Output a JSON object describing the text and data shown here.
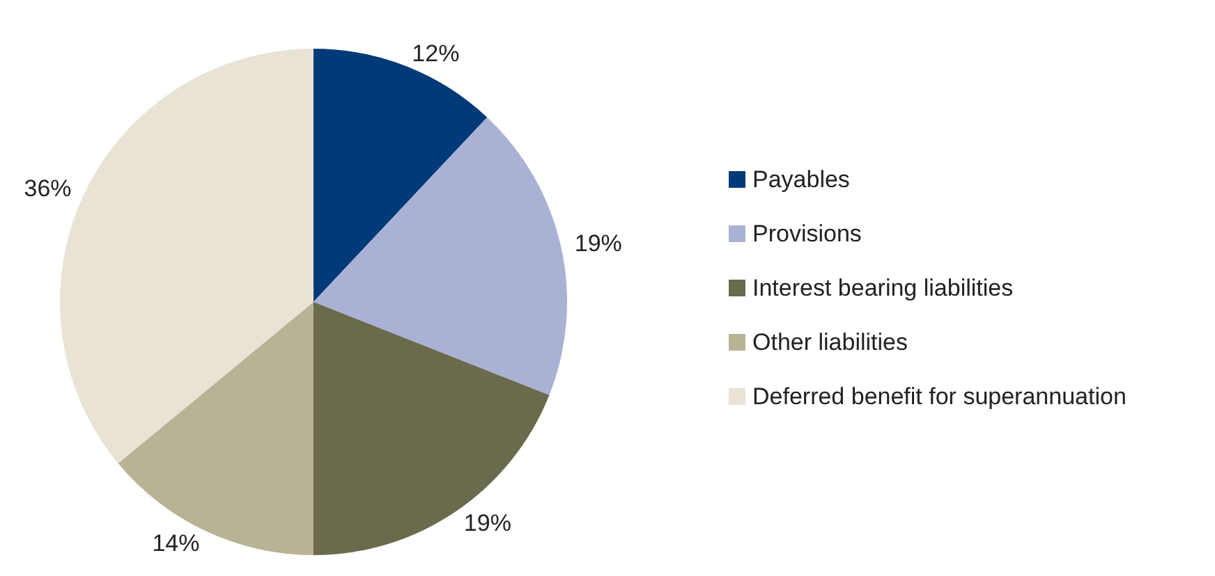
{
  "chart_data": {
    "type": "pie",
    "categories": [
      "Payables",
      "Provisions",
      "Interest bearing liabilities",
      "Other liabilities",
      "Deferred benefit for superannuation"
    ],
    "values": [
      12,
      19,
      19,
      14,
      36
    ],
    "value_labels": [
      "12%",
      "19%",
      "19%",
      "14%",
      "36%"
    ],
    "colors": [
      "#003a78",
      "#a9b2d4",
      "#6b6a4d",
      "#b8b394",
      "#e9e3d5"
    ],
    "legend": "right"
  }
}
